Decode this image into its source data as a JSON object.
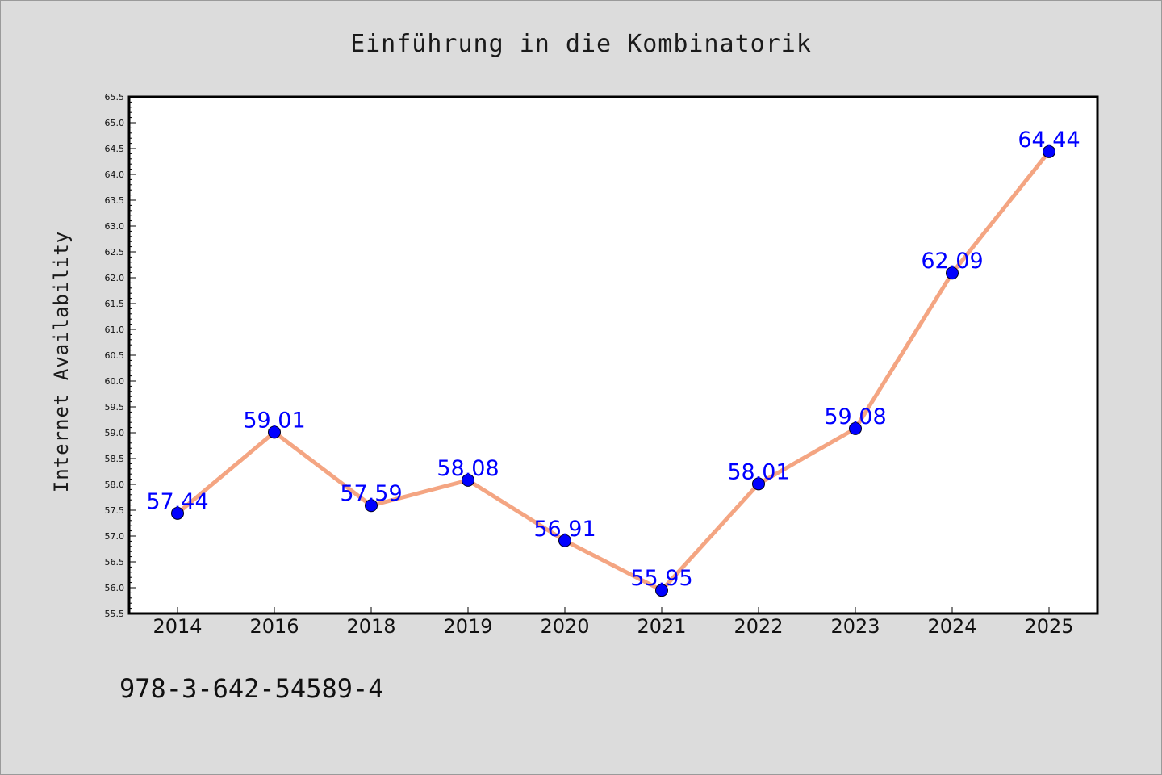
{
  "chart_data": {
    "type": "line",
    "title": "Einführung in die Kombinatorik",
    "xlabel": "",
    "ylabel": "Internet Availability",
    "categories": [
      "2014",
      "2016",
      "2018",
      "2019",
      "2020",
      "2021",
      "2022",
      "2023",
      "2024",
      "2025"
    ],
    "series": [
      {
        "values": [
          57.44,
          59.01,
          57.59,
          58.08,
          56.91,
          55.95,
          58.01,
          59.08,
          62.09,
          64.44
        ],
        "data_labels": [
          "57.44",
          "59.01",
          "57.59",
          "58.08",
          "56.91",
          "55.95",
          "58.01",
          "59.08",
          "62.09",
          "64.44"
        ],
        "line_color": "#f4a582",
        "marker_color": "#0000ff"
      }
    ],
    "ylim": [
      55.5,
      65.5
    ],
    "ytick_labels": [
      "55.5",
      "56.0",
      "56.5",
      "57.0",
      "57.5",
      "58.0",
      "58.5",
      "59.0",
      "59.5",
      "60.0",
      "60.5",
      "61.0",
      "61.5",
      "62.0",
      "62.5",
      "63.0",
      "63.5",
      "64.0",
      "64.5",
      "65.0",
      "65.5"
    ],
    "grid": false,
    "legend": "none"
  },
  "footnote": "978-3-642-54589-4",
  "colors": {
    "background": "#dcdcdc",
    "plot_area": "#ffffff",
    "line": "#f4a582",
    "marker": "#0000ff",
    "data_label": "#0000ff"
  }
}
